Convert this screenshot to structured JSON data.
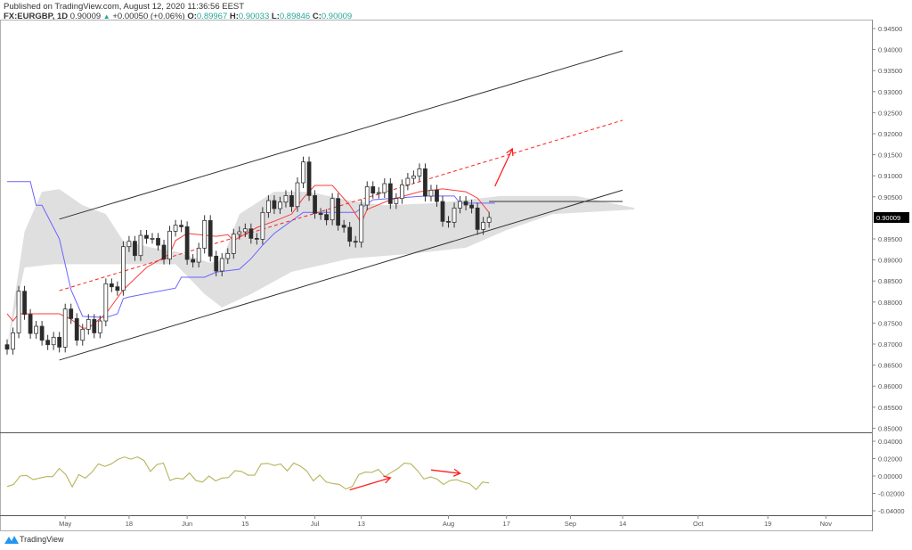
{
  "header": {
    "published": "Published on TradingView.com, August 12, 2020 11:36:56 EEST",
    "symbol": "FX:EURGBP, 1D",
    "last": "0.90009",
    "change_icon": "triangle-up-icon",
    "change": "+0.00050 (+0.06%)",
    "o_label": "O:",
    "o": "0.89967",
    "h_label": "H:",
    "h": "0.90033",
    "l_label": "L:",
    "l": "0.89846",
    "c_label": "C:",
    "c": "0.90009"
  },
  "colors": {
    "up_body": "#ffffff",
    "down_body": "#2a2a2a",
    "tenkan": "#ff3b3b",
    "kijun": "#6b63ff",
    "cloud": "#d9d9d9",
    "oscillator": "#b5b55a",
    "annotation": "#ff2020",
    "channel": "#333333",
    "value_text": "#26a69a"
  },
  "footer": {
    "logo": "TradingView"
  },
  "chart_data": [
    {
      "type": "candlestick",
      "first_bar_date": "2020-04-17",
      "last_bar_date": "2020-08-12",
      "ylim": [
        0.8475,
        0.9475
      ],
      "price_ticks": [
        "0.94500",
        "0.94000",
        "0.93500",
        "0.93000",
        "0.92500",
        "0.92000",
        "0.91500",
        "0.91000",
        "0.90500",
        "0.89500",
        "0.89000",
        "0.88500",
        "0.88000",
        "0.87500",
        "0.87000",
        "0.86500",
        "0.86000",
        "0.85500",
        "0.85000"
      ],
      "last_price_label": "0.90009",
      "first_open": 0.86985,
      "close": [
        0.86879,
        0.87267,
        0.88256,
        0.87705,
        0.87253,
        0.87423,
        0.87091,
        0.86985,
        0.87162,
        0.86928,
        0.87833,
        0.87607,
        0.87091,
        0.87352,
        0.87585,
        0.87267,
        0.8755,
        0.88433,
        0.88362,
        0.88277,
        0.89316,
        0.89443,
        0.89104,
        0.89584,
        0.89513,
        0.89513,
        0.89351,
        0.89019,
        0.89683,
        0.89824,
        0.89789,
        0.89012,
        0.88948,
        0.8928,
        0.89937,
        0.8909,
        0.88737,
        0.89033,
        0.89153,
        0.89613,
        0.89669,
        0.89739,
        0.89513,
        0.89492,
        0.90128,
        0.9041,
        0.9022,
        0.90375,
        0.9053,
        0.90269,
        0.90834,
        0.91329,
        0.9053,
        0.90107,
        0.90079,
        0.89952,
        0.9046,
        0.89824,
        0.89775,
        0.89443,
        0.89422,
        0.90305,
        0.90742,
        0.90587,
        0.90601,
        0.90813,
        0.9034,
        0.9046,
        0.90785,
        0.9094,
        0.90997,
        0.91166,
        0.90516,
        0.90658,
        0.90389,
        0.89916,
        0.89895,
        0.90234,
        0.90389,
        0.90305,
        0.90234,
        0.89725,
        0.89895,
        0.90009
      ],
      "kijun": [
        [
          0,
          0.9086
        ],
        [
          4,
          0.9086
        ],
        [
          5,
          0.903
        ],
        [
          6,
          0.903
        ],
        [
          9,
          0.895
        ],
        [
          11,
          0.8829
        ],
        [
          13,
          0.8766
        ],
        [
          17,
          0.8763
        ],
        [
          19,
          0.8772
        ],
        [
          20,
          0.8808
        ],
        [
          21,
          0.8812
        ],
        [
          29,
          0.8833
        ],
        [
          30,
          0.8859
        ],
        [
          34,
          0.8859
        ],
        [
          36,
          0.8871
        ],
        [
          40,
          0.8878
        ],
        [
          42,
          0.8903
        ],
        [
          44,
          0.8935
        ],
        [
          46,
          0.8963
        ],
        [
          51,
          0.9013
        ],
        [
          60,
          0.9013
        ],
        [
          63,
          0.9043
        ],
        [
          72,
          0.9052
        ],
        [
          77,
          0.9052
        ],
        [
          78,
          0.9035
        ],
        [
          84,
          0.9035
        ]
      ],
      "tenkan": [
        [
          0,
          0.8772
        ],
        [
          1,
          0.8755
        ],
        [
          2,
          0.8772
        ],
        [
          9,
          0.8772
        ],
        [
          11,
          0.8759
        ],
        [
          13,
          0.8738
        ],
        [
          14,
          0.8738
        ],
        [
          17,
          0.8772
        ],
        [
          20,
          0.8829
        ],
        [
          24,
          0.8882
        ],
        [
          28,
          0.8914
        ],
        [
          29,
          0.8946
        ],
        [
          31,
          0.8963
        ],
        [
          36,
          0.8956
        ],
        [
          38,
          0.896
        ],
        [
          39,
          0.8946
        ],
        [
          43,
          0.8977
        ],
        [
          46,
          0.8992
        ],
        [
          49,
          0.9009
        ],
        [
          51,
          0.9047
        ],
        [
          53,
          0.9077
        ],
        [
          56,
          0.9077
        ],
        [
          59,
          0.903
        ],
        [
          61,
          0.8988
        ],
        [
          62,
          0.902
        ],
        [
          66,
          0.9043
        ],
        [
          71,
          0.9062
        ],
        [
          75,
          0.9069
        ],
        [
          79,
          0.9062
        ],
        [
          81,
          0.9047
        ],
        [
          83,
          0.9013
        ]
      ],
      "cloud_upper": [
        [
          0,
          0.8692
        ],
        [
          3,
          0.8967
        ],
        [
          6,
          0.9062
        ],
        [
          9,
          0.9068
        ],
        [
          13,
          0.903
        ],
        [
          17,
          0.9009
        ],
        [
          20,
          0.8945
        ],
        [
          25,
          0.8929
        ],
        [
          29,
          0.892
        ],
        [
          35,
          0.8893
        ],
        [
          37,
          0.8899
        ],
        [
          40,
          0.9009
        ],
        [
          46,
          0.9062
        ],
        [
          52,
          0.9062
        ],
        [
          59,
          0.9041
        ],
        [
          65,
          0.903
        ],
        [
          74,
          0.9035
        ],
        [
          85,
          0.9052
        ],
        [
          98,
          0.9052
        ],
        [
          108,
          0.9024
        ]
      ],
      "cloud_lower": [
        [
          0,
          0.8692
        ],
        [
          3,
          0.8882
        ],
        [
          8,
          0.889
        ],
        [
          29,
          0.889
        ],
        [
          34,
          0.8819
        ],
        [
          37,
          0.8787
        ],
        [
          42,
          0.8819
        ],
        [
          49,
          0.8872
        ],
        [
          59,
          0.8903
        ],
        [
          69,
          0.8914
        ],
        [
          79,
          0.8929
        ],
        [
          86,
          0.8971
        ],
        [
          94,
          0.9009
        ],
        [
          108,
          0.902
        ]
      ],
      "channel_upper": [
        [
          9,
          0.8997
        ],
        [
          106,
          0.9397
        ]
      ],
      "channel_lower": [
        [
          9,
          0.8662
        ],
        [
          106,
          0.9066
        ]
      ],
      "channel_mid_dashed": [
        [
          9,
          0.8827
        ],
        [
          106,
          0.9232
        ]
      ],
      "horizontal_level": [
        [
          83,
          0.9039
        ],
        [
          106,
          0.9039
        ]
      ],
      "arrows": [
        [
          [
            84,
            0.9075
          ],
          [
            87,
            0.9164
          ]
        ]
      ]
    },
    {
      "type": "line",
      "ylim": [
        -0.045,
        0.045
      ],
      "y_ticks": [
        "0.04000",
        "0.02000",
        "0.00000",
        "-0.02000",
        "-0.04000"
      ],
      "y_tick_values": [
        0.04,
        0.02,
        0,
        -0.02,
        -0.04
      ],
      "bar_range": [
        0,
        83
      ],
      "values": [
        -0.0121,
        -0.0097,
        0,
        0.0007,
        -0.0042,
        -0.0024,
        -0.0007,
        -0.0007,
        0.0087,
        0.0017,
        -0.0125,
        0.0017,
        -0.0024,
        0.0042,
        0.0139,
        0.0111,
        0.0139,
        0.0191,
        0.0219,
        0.0194,
        0.0219,
        0.018,
        0.0052,
        0.0132,
        0.0149,
        -0.0052,
        -0.0024,
        -0.0035,
        0.0035,
        -0.0052,
        -0.0069,
        0,
        -0.0056,
        -0.0024,
        -0.0017,
        0.0062,
        0.0052,
        0.001,
        0.001,
        0.0139,
        0.0146,
        0.0121,
        0.0139,
        0.0059,
        0.0149,
        0.0114,
        0.0059,
        -0.0056,
        0.001,
        -0.0069,
        -0.0087,
        -0.0097,
        -0.0149,
        -0.0121,
        0.0017,
        0.0045,
        0.0042,
        0.0076,
        -0.0007,
        0.0042,
        0.0087,
        0.0149,
        0.0139,
        0.0062,
        -0.0035,
        -0.001,
        -0.0035,
        -0.0097,
        -0.0052,
        -0.0042,
        -0.0069,
        -0.0087,
        -0.0156,
        -0.0069,
        -0.008
      ],
      "arrows": [
        [
          [
            59,
            -0.016
          ],
          [
            66,
            -0.002
          ]
        ],
        [
          [
            73,
            0.007
          ],
          [
            78,
            0.003
          ]
        ]
      ]
    }
  ],
  "time_axis": [
    {
      "label": "May",
      "date": "2020-05-01"
    },
    {
      "label": "18",
      "date": "2020-05-18"
    },
    {
      "label": "Jun",
      "date": "2020-06-01"
    },
    {
      "label": "15",
      "date": "2020-06-15"
    },
    {
      "label": "Jul",
      "date": "2020-07-01"
    },
    {
      "label": "13",
      "date": "2020-07-13"
    },
    {
      "label": "Aug",
      "date": "2020-08-03"
    },
    {
      "label": "17",
      "date": "2020-08-17"
    },
    {
      "label": "Sep",
      "date": "2020-09-01"
    },
    {
      "label": "14",
      "date": "2020-09-14"
    },
    {
      "label": "Oct",
      "date": "2020-10-01"
    },
    {
      "label": "19",
      "date": "2020-10-19"
    },
    {
      "label": "Nov",
      "date": "2020-11-02"
    }
  ]
}
